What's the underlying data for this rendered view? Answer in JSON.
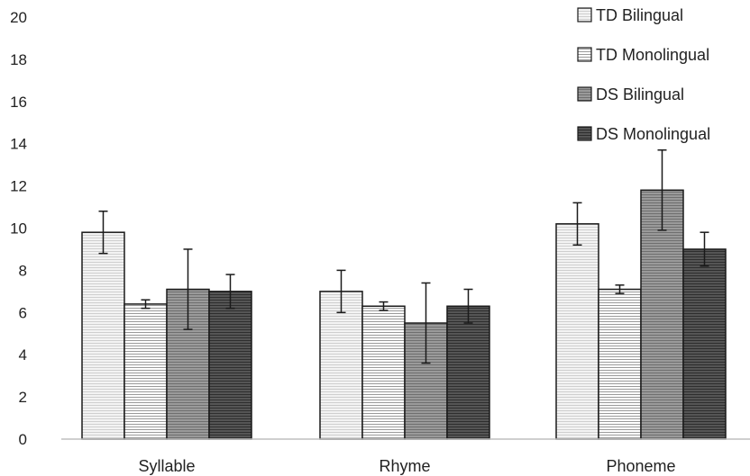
{
  "chart_data": {
    "type": "bar",
    "categories": [
      "Syllable",
      "Rhyme",
      "Phoneme"
    ],
    "series": [
      {
        "name": "TD Bilingual",
        "values": [
          9.8,
          7.0,
          10.2
        ],
        "err_low": [
          8.8,
          6.0,
          9.2
        ],
        "err_high": [
          10.8,
          8.0,
          11.2
        ],
        "fill": "#f3f3f3",
        "stripe": "#cfcfcf"
      },
      {
        "name": "TD Monolingual",
        "values": [
          6.4,
          6.3,
          7.1
        ],
        "err_low": [
          6.2,
          6.1,
          6.9
        ],
        "err_high": [
          6.6,
          6.5,
          7.3
        ],
        "fill": "#ffffff",
        "stripe": "#9a9a9a"
      },
      {
        "name": "DS Bilingual",
        "values": [
          7.1,
          5.5,
          11.8
        ],
        "err_low": [
          5.2,
          3.6,
          9.9
        ],
        "err_high": [
          9.0,
          7.4,
          13.7
        ],
        "fill": "#9a9a9a",
        "stripe": "#6f6f6f"
      },
      {
        "name": "DS Monolingual",
        "values": [
          7.0,
          6.3,
          9.0
        ],
        "err_low": [
          6.2,
          5.5,
          8.2
        ],
        "err_high": [
          7.8,
          7.1,
          9.8
        ],
        "fill": "#555555",
        "stripe": "#2e2e2e"
      }
    ],
    "yticks": [
      "0",
      "2",
      "4",
      "6",
      "8",
      "10",
      "12",
      "14",
      "16",
      "18",
      "20"
    ],
    "ylim": [
      0,
      20
    ],
    "legend_position": "top-right",
    "grid": false
  }
}
